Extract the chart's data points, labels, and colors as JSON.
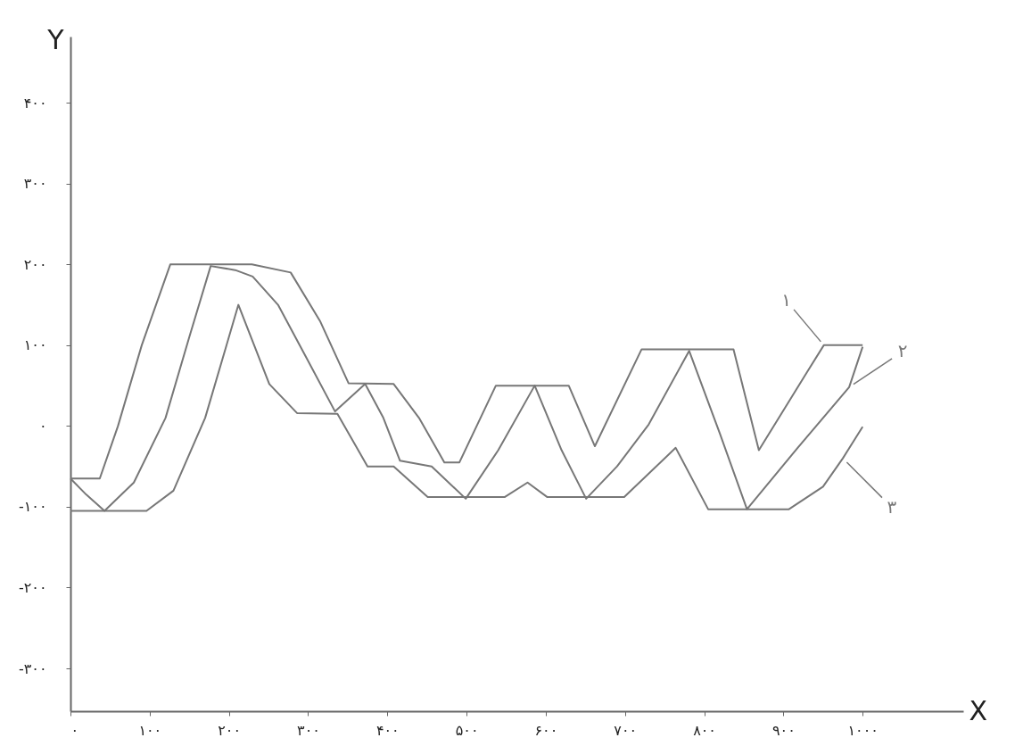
{
  "chart_data": {
    "type": "line",
    "xlabel": "X",
    "ylabel": "Y",
    "grid": false,
    "legend": false,
    "line_style": "solid",
    "xlim": [
      0,
      1127
    ],
    "ylim": [
      -353,
      482
    ],
    "xticks": [
      {
        "value": 0,
        "label": "۰"
      },
      {
        "value": 100,
        "label": "۱۰۰"
      },
      {
        "value": 200,
        "label": "۲۰۰"
      },
      {
        "value": 300,
        "label": "۳۰۰"
      },
      {
        "value": 400,
        "label": "۴۰۰"
      },
      {
        "value": 500,
        "label": "۵۰۰"
      },
      {
        "value": 600,
        "label": "۶۰۰"
      },
      {
        "value": 700,
        "label": "۷۰۰"
      },
      {
        "value": 800,
        "label": "۸۰۰"
      },
      {
        "value": 900,
        "label": "۹۰۰"
      },
      {
        "value": 1000,
        "label": "۱۰۰۰"
      }
    ],
    "yticks": [
      {
        "value": -300,
        "label": "-۳۰۰"
      },
      {
        "value": -200,
        "label": "-۲۰۰"
      },
      {
        "value": -100,
        "label": "-۱۰۰"
      },
      {
        "value": 0,
        "label": "۰"
      },
      {
        "value": 100,
        "label": "۱۰۰"
      },
      {
        "value": 200,
        "label": "۲۰۰"
      },
      {
        "value": 300,
        "label": "۳۰۰"
      },
      {
        "value": 400,
        "label": "۴۰۰"
      }
    ],
    "series": [
      {
        "name": "۱",
        "color": "#777777",
        "x": [
          0,
          37,
          60,
          90,
          126,
          229,
          278,
          315,
          351,
          408,
          440,
          472,
          491,
          537,
          629,
          662,
          721,
          837,
          869,
          930,
          951,
          1000
        ],
        "values": [
          -65,
          -65,
          0,
          100,
          200,
          200,
          190,
          130,
          53,
          52,
          10,
          -45,
          -45,
          50,
          50,
          -25,
          95,
          95,
          -30,
          67,
          100,
          100
        ]
      },
      {
        "name": "۲",
        "color": "#777777",
        "x": [
          0,
          20,
          43,
          80,
          120,
          150,
          177,
          208,
          230,
          262,
          297,
          334,
          372,
          395,
          416,
          456,
          499,
          540,
          586,
          620,
          651,
          690,
          730,
          781,
          820,
          854,
          918,
          983,
          1000
        ],
        "values": [
          -65,
          -85,
          -105,
          -70,
          10,
          110,
          198,
          193,
          185,
          150,
          86,
          18,
          52,
          10,
          -43,
          -50,
          -90,
          -30,
          50,
          -30,
          -90,
          -50,
          2,
          93,
          -10,
          -103,
          -27,
          48,
          98
        ]
      },
      {
        "name": "۳",
        "color": "#777777",
        "x": [
          0,
          96,
          130,
          170,
          212,
          251,
          286,
          337,
          375,
          408,
          451,
          548,
          577,
          602,
          699,
          764,
          805,
          907,
          950,
          975,
          1000
        ],
        "values": [
          -105,
          -105,
          -80,
          10,
          150,
          52,
          16,
          15,
          -50,
          -50,
          -88,
          -88,
          -70,
          -88,
          -88,
          -27,
          -103,
          -103,
          -75,
          -40,
          -1
        ]
      }
    ]
  }
}
